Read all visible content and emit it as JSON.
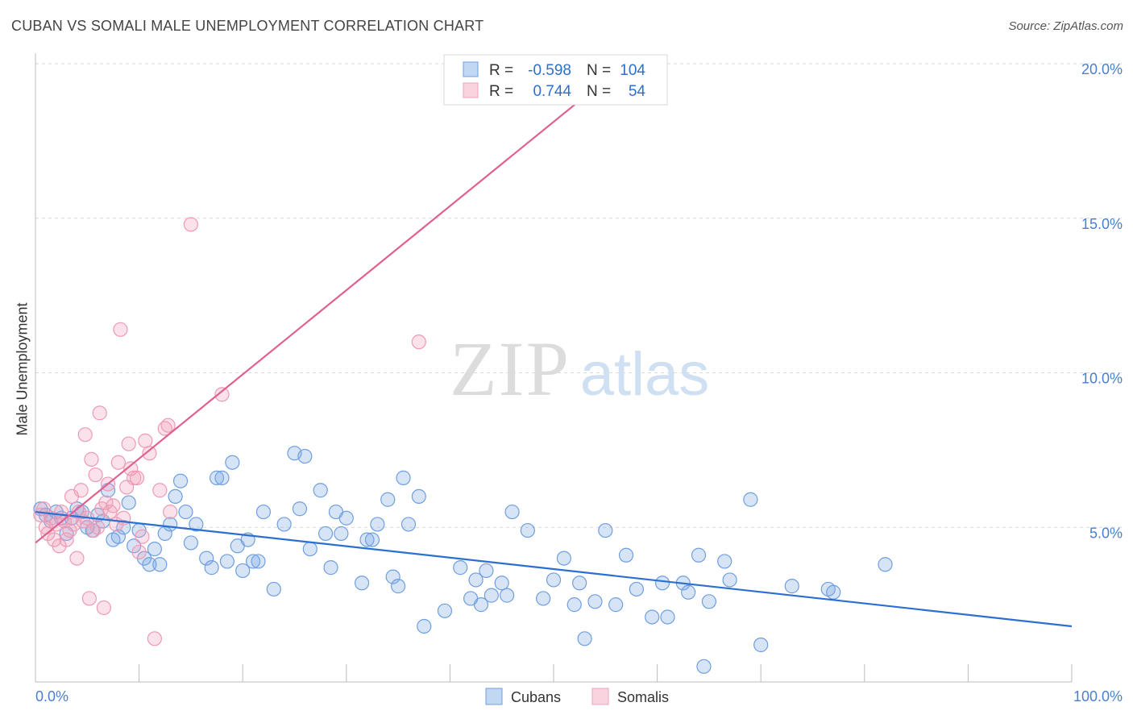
{
  "header": {
    "title": "CUBAN VS SOMALI MALE UNEMPLOYMENT CORRELATION CHART",
    "source": "Source: ZipAtlas.com"
  },
  "watermark": {
    "part1": "ZIP",
    "part2": "atlas"
  },
  "chart_data": {
    "type": "scatter",
    "title": "CUBAN VS SOMALI MALE UNEMPLOYMENT CORRELATION CHART",
    "xlabel": "",
    "ylabel": "Male Unemployment",
    "xlim": [
      0,
      100
    ],
    "ylim": [
      0,
      20
    ],
    "x_tick_labels": [
      "0.0%",
      "100.0%"
    ],
    "y_ticks": [
      5,
      10,
      15,
      20
    ],
    "y_tick_labels": [
      "5.0%",
      "10.0%",
      "15.0%",
      "20.0%"
    ],
    "grid": true,
    "legend_position": "bottom-center",
    "stats_legend": [
      {
        "series": "Cubans",
        "r_label": "R =",
        "r_value": "-0.598",
        "n_label": "N =",
        "n_value": "104"
      },
      {
        "series": "Somalis",
        "r_label": "R =",
        "r_value": "0.744",
        "n_label": "N =",
        "n_value": "54"
      }
    ],
    "series": [
      {
        "name": "Cubans",
        "color": "#6f9fdf",
        "line_color": "#2b6fd1",
        "trend": {
          "x": [
            0,
            100
          ],
          "y": [
            5.5,
            1.8
          ]
        },
        "points": [
          [
            0.5,
            5.6
          ],
          [
            1.0,
            5.4
          ],
          [
            1.5,
            5.2
          ],
          [
            2.0,
            5.5
          ],
          [
            2.5,
            5.3
          ],
          [
            3.0,
            4.8
          ],
          [
            3.5,
            5.3
          ],
          [
            4.0,
            5.6
          ],
          [
            4.5,
            5.5
          ],
          [
            5.0,
            5.0
          ],
          [
            5.5,
            4.9
          ],
          [
            6.0,
            5.4
          ],
          [
            6.5,
            5.2
          ],
          [
            7.0,
            6.2
          ],
          [
            7.5,
            4.6
          ],
          [
            8.0,
            4.7
          ],
          [
            8.5,
            5.0
          ],
          [
            9.0,
            5.8
          ],
          [
            9.5,
            4.4
          ],
          [
            10.0,
            4.9
          ],
          [
            10.5,
            4.0
          ],
          [
            11.0,
            3.8
          ],
          [
            11.5,
            4.3
          ],
          [
            12.0,
            3.8
          ],
          [
            12.5,
            4.8
          ],
          [
            13.0,
            5.1
          ],
          [
            13.5,
            6.0
          ],
          [
            14.0,
            6.5
          ],
          [
            14.5,
            5.5
          ],
          [
            15.0,
            4.5
          ],
          [
            15.5,
            5.1
          ],
          [
            16.5,
            4.0
          ],
          [
            17.0,
            3.7
          ],
          [
            17.5,
            6.6
          ],
          [
            18.0,
            6.6
          ],
          [
            18.5,
            3.9
          ],
          [
            19.0,
            7.1
          ],
          [
            19.5,
            4.4
          ],
          [
            20.0,
            3.6
          ],
          [
            20.5,
            4.6
          ],
          [
            21.0,
            3.9
          ],
          [
            21.5,
            3.9
          ],
          [
            22.0,
            5.5
          ],
          [
            23.0,
            3.0
          ],
          [
            24.0,
            5.1
          ],
          [
            25.0,
            7.4
          ],
          [
            25.5,
            5.6
          ],
          [
            26.0,
            7.3
          ],
          [
            26.5,
            4.3
          ],
          [
            27.5,
            6.2
          ],
          [
            28.0,
            4.8
          ],
          [
            28.5,
            3.7
          ],
          [
            29.0,
            5.5
          ],
          [
            29.5,
            4.8
          ],
          [
            30.0,
            5.3
          ],
          [
            31.5,
            3.2
          ],
          [
            32.0,
            4.6
          ],
          [
            32.5,
            4.6
          ],
          [
            33.0,
            5.1
          ],
          [
            34.0,
            5.9
          ],
          [
            34.5,
            3.4
          ],
          [
            35.0,
            3.1
          ],
          [
            35.5,
            6.6
          ],
          [
            36.0,
            5.1
          ],
          [
            37.0,
            6.0
          ],
          [
            37.5,
            1.8
          ],
          [
            39.5,
            2.3
          ],
          [
            41.0,
            3.7
          ],
          [
            42.0,
            2.7
          ],
          [
            42.5,
            3.3
          ],
          [
            43.0,
            2.5
          ],
          [
            43.5,
            3.6
          ],
          [
            44.0,
            2.8
          ],
          [
            45.0,
            3.2
          ],
          [
            45.5,
            2.8
          ],
          [
            46.0,
            5.5
          ],
          [
            47.5,
            4.9
          ],
          [
            49.0,
            2.7
          ],
          [
            50.0,
            3.3
          ],
          [
            51.0,
            4.0
          ],
          [
            52.0,
            2.5
          ],
          [
            52.5,
            3.2
          ],
          [
            53.0,
            1.4
          ],
          [
            54.0,
            2.6
          ],
          [
            55.0,
            4.9
          ],
          [
            56.0,
            2.5
          ],
          [
            57.0,
            4.1
          ],
          [
            58.0,
            3.0
          ],
          [
            59.5,
            2.1
          ],
          [
            60.5,
            3.2
          ],
          [
            61.0,
            2.1
          ],
          [
            62.5,
            3.2
          ],
          [
            63.0,
            2.9
          ],
          [
            64.0,
            4.1
          ],
          [
            64.5,
            0.5
          ],
          [
            65.0,
            2.6
          ],
          [
            66.5,
            3.9
          ],
          [
            67.0,
            3.3
          ],
          [
            69.0,
            5.9
          ],
          [
            70.0,
            1.2
          ],
          [
            73.0,
            3.1
          ],
          [
            76.5,
            3.0
          ],
          [
            77.0,
            2.9
          ],
          [
            82.0,
            3.8
          ]
        ]
      },
      {
        "name": "Somalis",
        "color": "#f2a0b8",
        "line_color": "#e06090",
        "trend": {
          "x": [
            0,
            52.5
          ],
          "y": [
            4.5,
            18.8
          ]
        },
        "points": [
          [
            0.5,
            5.4
          ],
          [
            0.8,
            5.6
          ],
          [
            1.0,
            5.0
          ],
          [
            1.2,
            4.8
          ],
          [
            1.5,
            5.3
          ],
          [
            1.8,
            4.6
          ],
          [
            2.0,
            5.1
          ],
          [
            2.3,
            4.4
          ],
          [
            2.5,
            5.5
          ],
          [
            2.8,
            5.2
          ],
          [
            3.0,
            4.6
          ],
          [
            3.3,
            4.9
          ],
          [
            3.5,
            6.0
          ],
          [
            3.7,
            5.1
          ],
          [
            4.0,
            4.0
          ],
          [
            4.2,
            5.5
          ],
          [
            4.4,
            6.2
          ],
          [
            4.6,
            5.2
          ],
          [
            4.8,
            8.0
          ],
          [
            5.0,
            5.3
          ],
          [
            5.2,
            2.7
          ],
          [
            5.4,
            7.2
          ],
          [
            5.6,
            4.9
          ],
          [
            5.8,
            6.7
          ],
          [
            6.0,
            5.0
          ],
          [
            6.2,
            8.7
          ],
          [
            6.4,
            5.6
          ],
          [
            6.6,
            2.4
          ],
          [
            6.8,
            5.8
          ],
          [
            7.0,
            6.4
          ],
          [
            7.2,
            5.5
          ],
          [
            7.5,
            5.7
          ],
          [
            7.8,
            5.1
          ],
          [
            8.0,
            7.1
          ],
          [
            8.2,
            11.4
          ],
          [
            8.5,
            5.3
          ],
          [
            8.8,
            6.3
          ],
          [
            9.0,
            7.7
          ],
          [
            9.2,
            6.9
          ],
          [
            9.5,
            6.6
          ],
          [
            9.8,
            6.6
          ],
          [
            10.0,
            4.2
          ],
          [
            10.3,
            4.7
          ],
          [
            10.6,
            7.8
          ],
          [
            11.0,
            7.4
          ],
          [
            11.5,
            1.4
          ],
          [
            12.0,
            6.2
          ],
          [
            12.5,
            8.2
          ],
          [
            12.8,
            8.3
          ],
          [
            13.0,
            5.5
          ],
          [
            15.0,
            14.8
          ],
          [
            18.0,
            9.3
          ],
          [
            37.0,
            11.0
          ],
          [
            52.0,
            19.8
          ]
        ]
      }
    ]
  }
}
